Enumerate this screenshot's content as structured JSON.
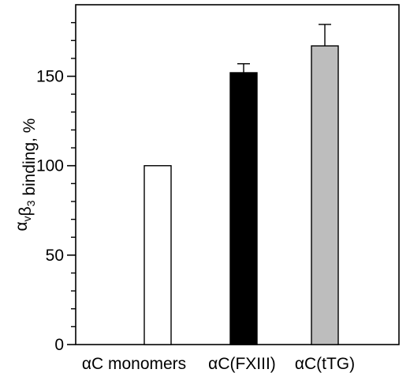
{
  "chart_data": {
    "type": "bar",
    "categories": [
      "αC monomers",
      "αC(FXIII)",
      "αC(tTG)"
    ],
    "values": [
      100,
      152,
      167
    ],
    "errors": [
      0,
      5,
      12
    ],
    "bar_colors": [
      "#ffffff",
      "#000000",
      "#bdbdbd"
    ],
    "ylabel": {
      "parts": [
        {
          "t": "α",
          "sub": false
        },
        {
          "t": "v",
          "sub": true
        },
        {
          "t": "β",
          "sub": false
        },
        {
          "t": "3",
          "sub": true
        },
        {
          "t": " binding, %",
          "sub": false
        }
      ]
    },
    "ylim": [
      0,
      190
    ],
    "yticks_major": [
      0,
      50,
      100,
      150
    ],
    "yticks_minor": [
      10,
      20,
      30,
      40,
      60,
      70,
      80,
      90,
      110,
      120,
      130,
      140,
      160,
      170,
      180
    ],
    "grid": false,
    "legend": "none"
  }
}
